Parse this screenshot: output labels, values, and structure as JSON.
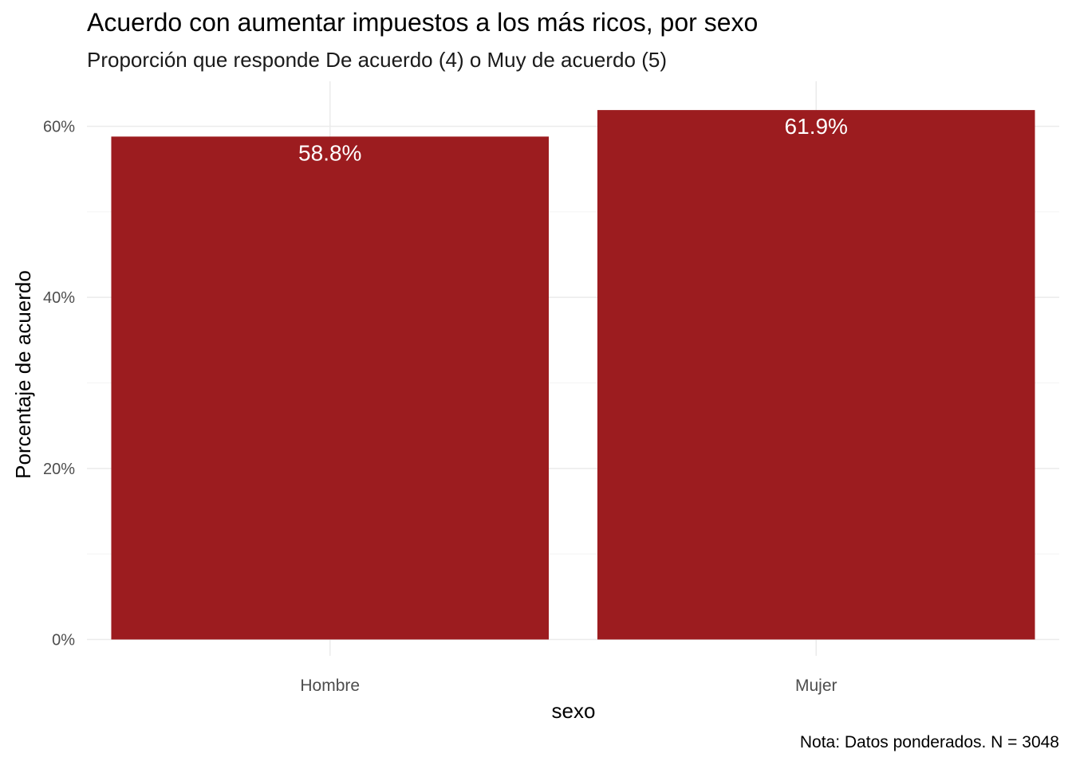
{
  "chart_data": {
    "type": "bar",
    "title": "Acuerdo con aumentar impuestos a los más ricos, por sexo",
    "subtitle": "Proporción que responde De acuerdo (4) o Muy de acuerdo (5)",
    "xlabel": "sexo",
    "ylabel": "Porcentaje de acuerdo",
    "caption": "Nota: Datos ponderados. N = 3048",
    "categories": [
      "Hombre",
      "Mujer"
    ],
    "values": [
      58.8,
      61.9
    ],
    "value_labels": [
      "58.8%",
      "61.9%"
    ],
    "yticks": [
      0,
      20,
      40,
      60
    ],
    "ytick_labels": [
      "0%",
      "20%",
      "40%",
      "60%"
    ],
    "ylim": [
      0,
      65
    ],
    "grid": true,
    "legend": "none",
    "colors": {
      "bar": "#9C1C1F",
      "grid_major": "#EBEBEB",
      "grid_minor": "#F4F4F4",
      "tick_text": "#4D4D4D",
      "value_label": "#FFFFFF"
    }
  }
}
